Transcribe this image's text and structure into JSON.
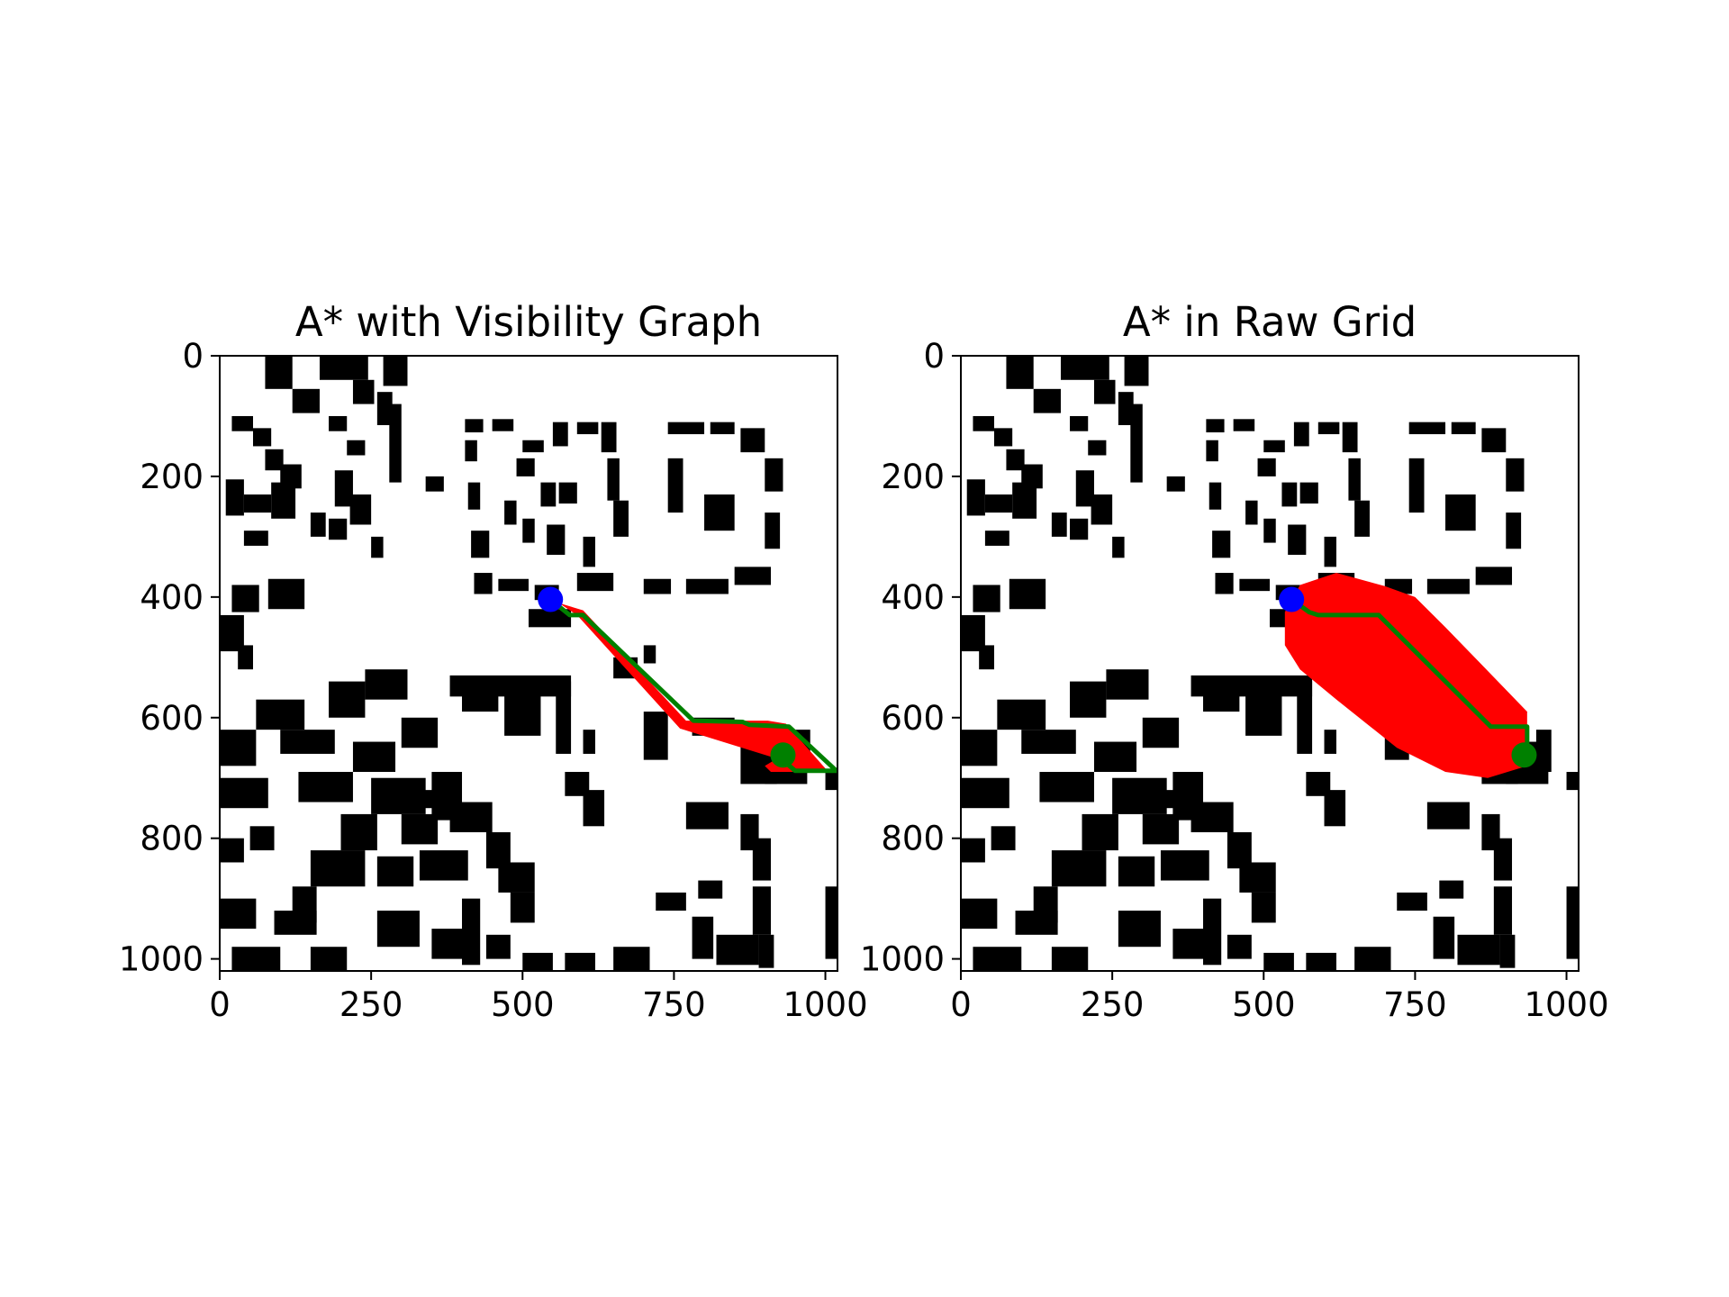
{
  "chart_data": [
    {
      "type": "scatter",
      "title": "A* with Visibility Graph",
      "xlabel": "",
      "ylabel": "",
      "xlim": [
        0,
        1020
      ],
      "ylim": [
        1020,
        0
      ],
      "xticks": [
        0,
        250,
        500,
        750,
        1000
      ],
      "yticks": [
        0,
        200,
        400,
        600,
        800,
        1000
      ],
      "grid": false,
      "background": "occupancy-grid-buildings",
      "series": [
        {
          "color": "#ff0000",
          "role": "explored",
          "polygon": [
            [
              560,
              410
            ],
            [
              600,
              422
            ],
            [
              770,
              605
            ],
            [
              905,
              605
            ],
            [
              935,
              610
            ],
            [
              1005,
              690
            ],
            [
              925,
              690
            ],
            [
              910,
              690
            ],
            [
              900,
              680
            ],
            [
              920,
              668
            ],
            [
              760,
              618
            ],
            [
              590,
              430
            ]
          ]
        },
        {
          "color": "#008000",
          "role": "path",
          "x": [
            546,
            578,
            600,
            782,
            863,
            875,
            940,
            1018,
            950,
            935,
            935
          ],
          "y": [
            404,
            430,
            430,
            605,
            607,
            612,
            615,
            688,
            688,
            675,
            662
          ]
        },
        {
          "color": "#0000ff",
          "role": "start",
          "x": [
            546
          ],
          "y": [
            404
          ]
        },
        {
          "color": "#008000",
          "role": "goal",
          "x": [
            930
          ],
          "y": [
            662
          ]
        }
      ]
    },
    {
      "type": "scatter",
      "title": "A* in Raw Grid",
      "xlabel": "",
      "ylabel": "",
      "xlim": [
        0,
        1020
      ],
      "ylim": [
        1020,
        0
      ],
      "xticks": [
        0,
        250,
        500,
        750,
        1000
      ],
      "yticks": [
        0,
        200,
        400,
        600,
        800,
        1000
      ],
      "grid": false,
      "background": "occupancy-grid-buildings",
      "series": [
        {
          "color": "#ff0000",
          "role": "explored",
          "polygon": [
            [
              535,
              425
            ],
            [
              560,
              380
            ],
            [
              620,
              360
            ],
            [
              700,
              382
            ],
            [
              750,
              400
            ],
            [
              800,
              450
            ],
            [
              935,
              590
            ],
            [
              935,
              680
            ],
            [
              870,
              700
            ],
            [
              800,
              690
            ],
            [
              720,
              650
            ],
            [
              620,
              570
            ],
            [
              560,
              520
            ],
            [
              535,
              480
            ]
          ]
        },
        {
          "color": "#008000",
          "role": "path",
          "x": [
            546,
            575,
            590,
            690,
            875,
            935,
            935
          ],
          "y": [
            404,
            425,
            430,
            430,
            615,
            615,
            662
          ]
        },
        {
          "color": "#0000ff",
          "role": "start",
          "x": [
            546
          ],
          "y": [
            404
          ]
        },
        {
          "color": "#008000",
          "role": "goal",
          "x": [
            930
          ],
          "y": [
            662
          ]
        }
      ]
    }
  ]
}
